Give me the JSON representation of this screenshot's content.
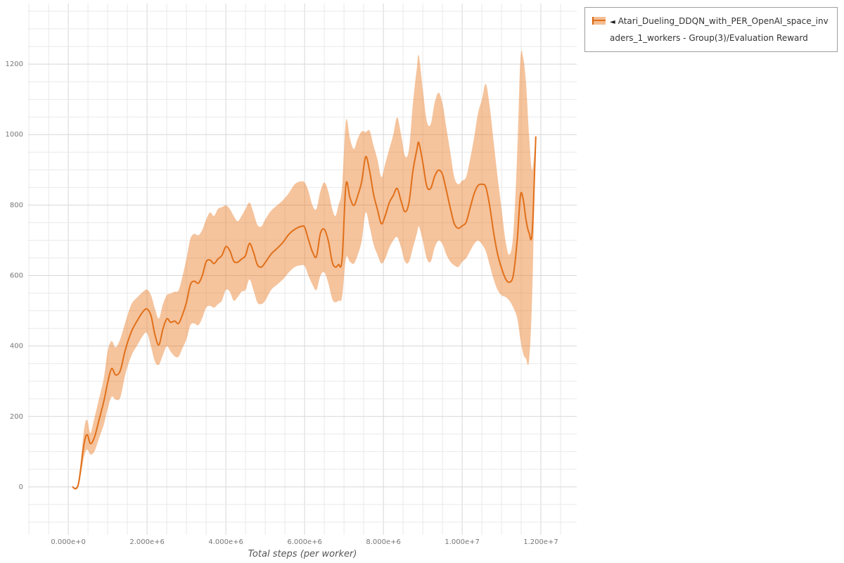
{
  "chart_data": {
    "type": "line",
    "title": "",
    "xlabel": "Total steps (per worker)",
    "ylabel": "",
    "xlim": [
      -1020000,
      12910000
    ],
    "ylim": [
      -136,
      1372
    ],
    "x_grid_step": 500000,
    "y_grid_step": 50,
    "grid": true,
    "legend_position": "top-right",
    "background": "#ffffff",
    "grid_color": "#e9e9e9",
    "grid_major_color": "#d7d7d7",
    "tick_color": "#777777",
    "axis_label_color": "#555555",
    "x_ticks": [
      {
        "value": 0,
        "label": "0.000e+0"
      },
      {
        "value": 2000000,
        "label": "2.000e+6"
      },
      {
        "value": 4000000,
        "label": "4.000e+6"
      },
      {
        "value": 6000000,
        "label": "6.000e+6"
      },
      {
        "value": 8000000,
        "label": "8.000e+6"
      },
      {
        "value": 10000000,
        "label": "1.000e+7"
      },
      {
        "value": 12000000,
        "label": "1.200e+7"
      }
    ],
    "y_ticks": [
      {
        "value": 0,
        "label": "0"
      },
      {
        "value": 200,
        "label": "200"
      },
      {
        "value": 400,
        "label": "400"
      },
      {
        "value": 600,
        "label": "600"
      },
      {
        "value": 800,
        "label": "800"
      },
      {
        "value": 1000,
        "label": "1000"
      },
      {
        "value": 1200,
        "label": "1200"
      }
    ],
    "points_format": "[total_steps, band_lower, mean, band_upper]",
    "series": [
      {
        "name": "Atari_Dueling_DDQN_with_PER_OpenAI_space_invaders_1_workers - Group(3)/Evaluation Reward",
        "legend_marker": "◄",
        "color": "#e1701a",
        "band_color": "rgba(232,122,36,0.45)",
        "points": [
          [
            100000,
            0,
            0,
            0
          ],
          [
            250000,
            0,
            5,
            14
          ],
          [
            400000,
            85,
            122,
            162
          ],
          [
            480000,
            106,
            148,
            190
          ],
          [
            560000,
            92,
            123,
            152
          ],
          [
            660000,
            100,
            140,
            195
          ],
          [
            780000,
            138,
            190,
            250
          ],
          [
            900000,
            176,
            242,
            308
          ],
          [
            1000000,
            222,
            296,
            386
          ],
          [
            1100000,
            256,
            336,
            414
          ],
          [
            1200000,
            248,
            318,
            396
          ],
          [
            1320000,
            254,
            330,
            420
          ],
          [
            1450000,
            320,
            390,
            468
          ],
          [
            1600000,
            372,
            440,
            518
          ],
          [
            1750000,
            402,
            472,
            538
          ],
          [
            1900000,
            430,
            498,
            554
          ],
          [
            2000000,
            436,
            505,
            560
          ],
          [
            2100000,
            398,
            486,
            544
          ],
          [
            2200000,
            356,
            432,
            506
          ],
          [
            2300000,
            347,
            403,
            478
          ],
          [
            2400000,
            374,
            447,
            518
          ],
          [
            2500000,
            399,
            477,
            544
          ],
          [
            2600000,
            384,
            467,
            549
          ],
          [
            2700000,
            371,
            471,
            554
          ],
          [
            2800000,
            370,
            464,
            558
          ],
          [
            2900000,
            394,
            489,
            598
          ],
          [
            3000000,
            419,
            524,
            648
          ],
          [
            3100000,
            459,
            574,
            704
          ],
          [
            3200000,
            464,
            584,
            718
          ],
          [
            3300000,
            459,
            578,
            714
          ],
          [
            3400000,
            479,
            599,
            729
          ],
          [
            3500000,
            509,
            639,
            759
          ],
          [
            3600000,
            514,
            644,
            779
          ],
          [
            3700000,
            509,
            634,
            769
          ],
          [
            3800000,
            519,
            647,
            789
          ],
          [
            3900000,
            529,
            657,
            794
          ],
          [
            4000000,
            559,
            682,
            799
          ],
          [
            4100000,
            554,
            671,
            789
          ],
          [
            4200000,
            529,
            641,
            769
          ],
          [
            4300000,
            539,
            638,
            754
          ],
          [
            4400000,
            554,
            647,
            769
          ],
          [
            4500000,
            559,
            657,
            789
          ],
          [
            4600000,
            589,
            691,
            807
          ],
          [
            4700000,
            559,
            667,
            779
          ],
          [
            4800000,
            524,
            631,
            744
          ],
          [
            4900000,
            519,
            624,
            739
          ],
          [
            5000000,
            529,
            637,
            759
          ],
          [
            5150000,
            559,
            661,
            784
          ],
          [
            5300000,
            574,
            677,
            799
          ],
          [
            5450000,
            589,
            694,
            814
          ],
          [
            5600000,
            609,
            717,
            834
          ],
          [
            5750000,
            624,
            731,
            859
          ],
          [
            5900000,
            629,
            739,
            867
          ],
          [
            6000000,
            627,
            737,
            864
          ],
          [
            6100000,
            599,
            701,
            839
          ],
          [
            6200000,
            574,
            667,
            799
          ],
          [
            6300000,
            559,
            654,
            789
          ],
          [
            6400000,
            599,
            719,
            839
          ],
          [
            6500000,
            609,
            731,
            864
          ],
          [
            6600000,
            579,
            699,
            839
          ],
          [
            6700000,
            534,
            639,
            789
          ],
          [
            6780000,
            524,
            624,
            769
          ],
          [
            6860000,
            529,
            631,
            799
          ],
          [
            6950000,
            539,
            644,
            849
          ],
          [
            7050000,
            649,
            857,
            1039
          ],
          [
            7150000,
            639,
            821,
            989
          ],
          [
            7250000,
            634,
            799,
            959
          ],
          [
            7350000,
            659,
            827,
            989
          ],
          [
            7450000,
            699,
            867,
            1009
          ],
          [
            7550000,
            779,
            937,
            1007
          ],
          [
            7650000,
            739,
            897,
            1011
          ],
          [
            7750000,
            689,
            831,
            969
          ],
          [
            7850000,
            659,
            787,
            929
          ],
          [
            7950000,
            634,
            747,
            879
          ],
          [
            8050000,
            649,
            771,
            919
          ],
          [
            8150000,
            679,
            807,
            959
          ],
          [
            8250000,
            699,
            827,
            999
          ],
          [
            8350000,
            709,
            847,
            1049
          ],
          [
            8450000,
            679,
            811,
            999
          ],
          [
            8550000,
            639,
            781,
            939
          ],
          [
            8650000,
            639,
            807,
            959
          ],
          [
            8750000,
            679,
            897,
            1089
          ],
          [
            8850000,
            719,
            957,
            1189
          ],
          [
            8900000,
            739,
            977,
            1224
          ],
          [
            9000000,
            699,
            921,
            1129
          ],
          [
            9100000,
            649,
            854,
            1039
          ],
          [
            9200000,
            639,
            847,
            1029
          ],
          [
            9300000,
            679,
            881,
            1089
          ],
          [
            9400000,
            699,
            899,
            1119
          ],
          [
            9500000,
            689,
            887,
            1089
          ],
          [
            9600000,
            659,
            841,
            1019
          ],
          [
            9700000,
            639,
            791,
            949
          ],
          [
            9800000,
            629,
            747,
            879
          ],
          [
            9900000,
            624,
            734,
            859
          ],
          [
            10000000,
            639,
            741,
            869
          ],
          [
            10100000,
            649,
            751,
            879
          ],
          [
            10200000,
            669,
            791,
            929
          ],
          [
            10300000,
            689,
            831,
            989
          ],
          [
            10400000,
            699,
            855,
            1059
          ],
          [
            10500000,
            689,
            859,
            1099
          ],
          [
            10600000,
            669,
            851,
            1144
          ],
          [
            10700000,
            629,
            797,
            1079
          ],
          [
            10800000,
            589,
            721,
            979
          ],
          [
            10900000,
            559,
            661,
            879
          ],
          [
            11000000,
            544,
            621,
            789
          ],
          [
            11100000,
            539,
            591,
            699
          ],
          [
            11200000,
            529,
            581,
            659
          ],
          [
            11300000,
            509,
            601,
            719
          ],
          [
            11400000,
            479,
            701,
            949
          ],
          [
            11480000,
            419,
            827,
            1214
          ],
          [
            11550000,
            379,
            817,
            1219
          ],
          [
            11620000,
            364,
            759,
            1149
          ],
          [
            11700000,
            359,
            721,
            999
          ],
          [
            11780000,
            549,
            724,
            899
          ],
          [
            11870000,
            993,
            995,
            997
          ]
        ]
      }
    ]
  }
}
